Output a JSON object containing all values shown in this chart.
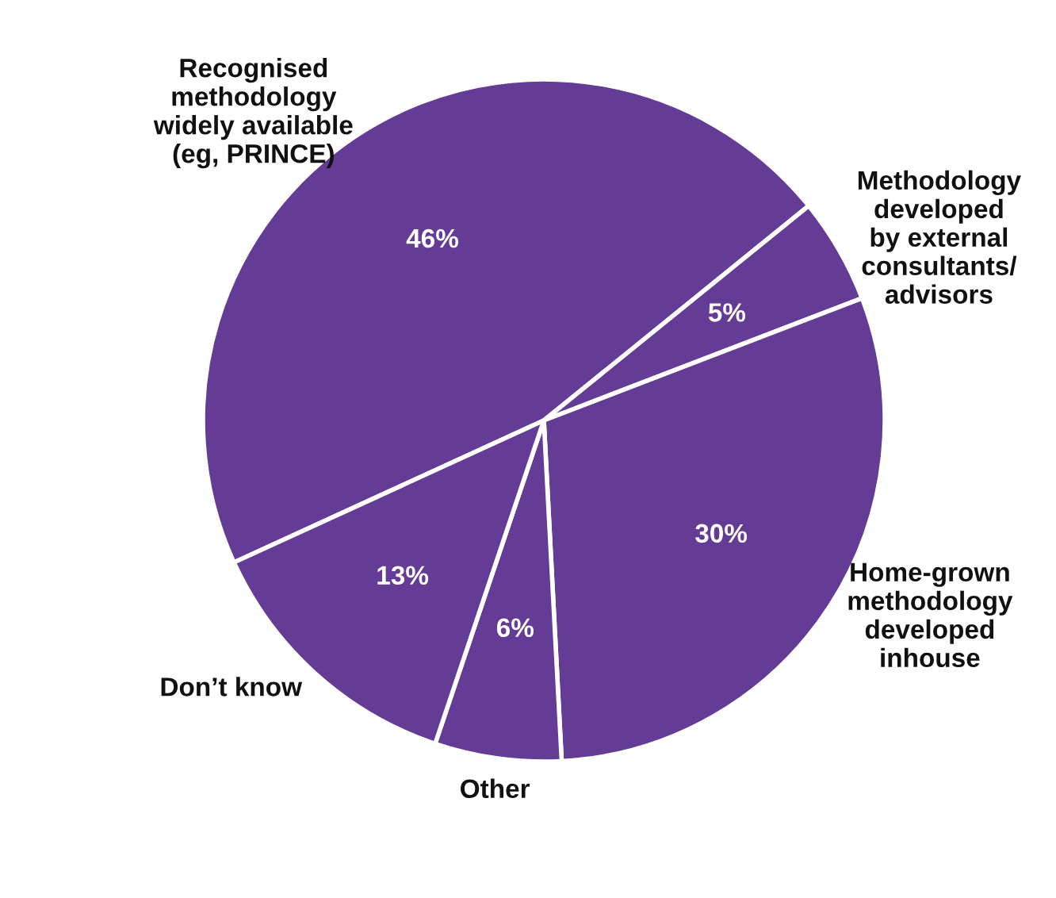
{
  "chart_data": {
    "type": "pie",
    "categories": [
      "Recognised\nmethodology\nwidely available\n(eg, PRINCE)",
      "Methodology\ndeveloped\nby external\nconsultants/\nadvisors",
      "Home-grown\nmethodology\ndeveloped\ninhouse",
      "Other",
      "Don’t know"
    ],
    "values": [
      46,
      5,
      30,
      6,
      13
    ],
    "value_labels": [
      "46%",
      "5%",
      "30%",
      "6%",
      "13%"
    ],
    "colors": [
      "#643c96",
      "#643c96",
      "#643c96",
      "#643c96",
      "#643c96"
    ]
  }
}
